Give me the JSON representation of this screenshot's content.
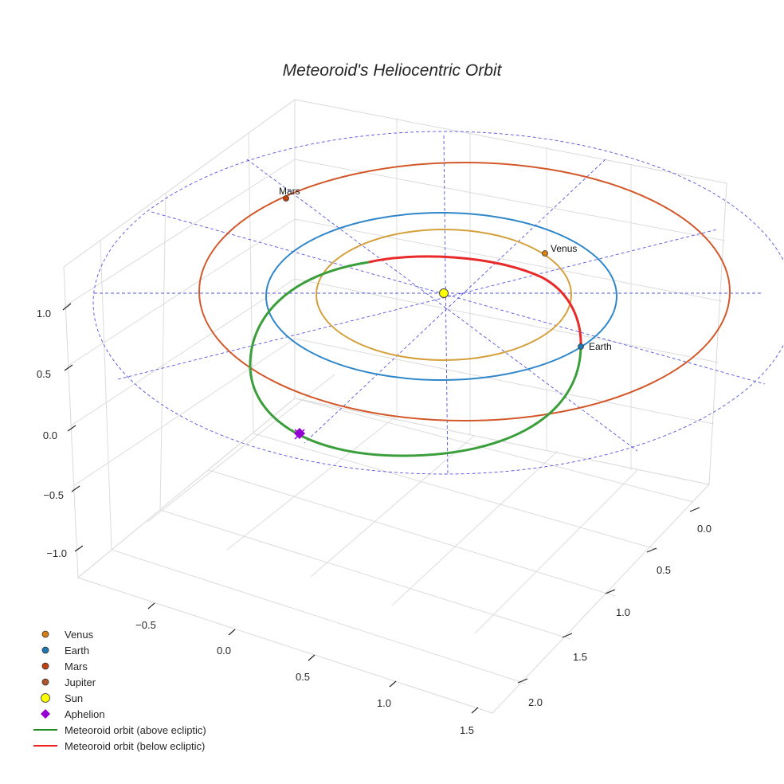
{
  "chart_data": {
    "type": "3d-orbit",
    "title": "Meteoroid's Heliocentric Orbit",
    "axes": {
      "x": {
        "ticks": [
          "−0.5",
          "0.0",
          "0.5",
          "1.0",
          "1.5"
        ]
      },
      "y": {
        "ticks": [
          "0.0",
          "0.5",
          "1.0",
          "1.5",
          "2.0"
        ]
      },
      "z": {
        "ticks": [
          "1.0",
          "0.5",
          "0.0",
          "−0.5",
          "−1.0"
        ]
      }
    },
    "orbits": [
      {
        "name": "Venus",
        "semi_major_au": 0.72,
        "color": "#d4a03c"
      },
      {
        "name": "Earth",
        "semi_major_au": 1.0,
        "color": "#1f77b4"
      },
      {
        "name": "Mars",
        "semi_major_au": 1.52,
        "color": "#d2582a"
      }
    ],
    "meteoroid": {
      "above_ecliptic_color": "#2ca02c",
      "below_ecliptic_color": "#e82a2a"
    },
    "point_labels": [
      "Mars",
      "Venus",
      "Earth"
    ],
    "legend": [
      {
        "label": "Venus",
        "marker": "circle",
        "color": "#d67f12"
      },
      {
        "label": "Earth",
        "marker": "circle",
        "color": "#1f77b4"
      },
      {
        "label": "Mars",
        "marker": "circle",
        "color": "#c3400f"
      },
      {
        "label": "Jupiter",
        "marker": "circle",
        "color": "#b2542a"
      },
      {
        "label": "Sun",
        "marker": "circle-large",
        "color": "#ffff00"
      },
      {
        "label": "Aphelion",
        "marker": "diamond",
        "color": "#9400d3"
      },
      {
        "label": "Meteoroid orbit (above ecliptic)",
        "marker": "line",
        "color": "#228b22"
      },
      {
        "label": "Meteoroid orbit (below ecliptic)",
        "marker": "line",
        "color": "#ee2222"
      }
    ]
  }
}
